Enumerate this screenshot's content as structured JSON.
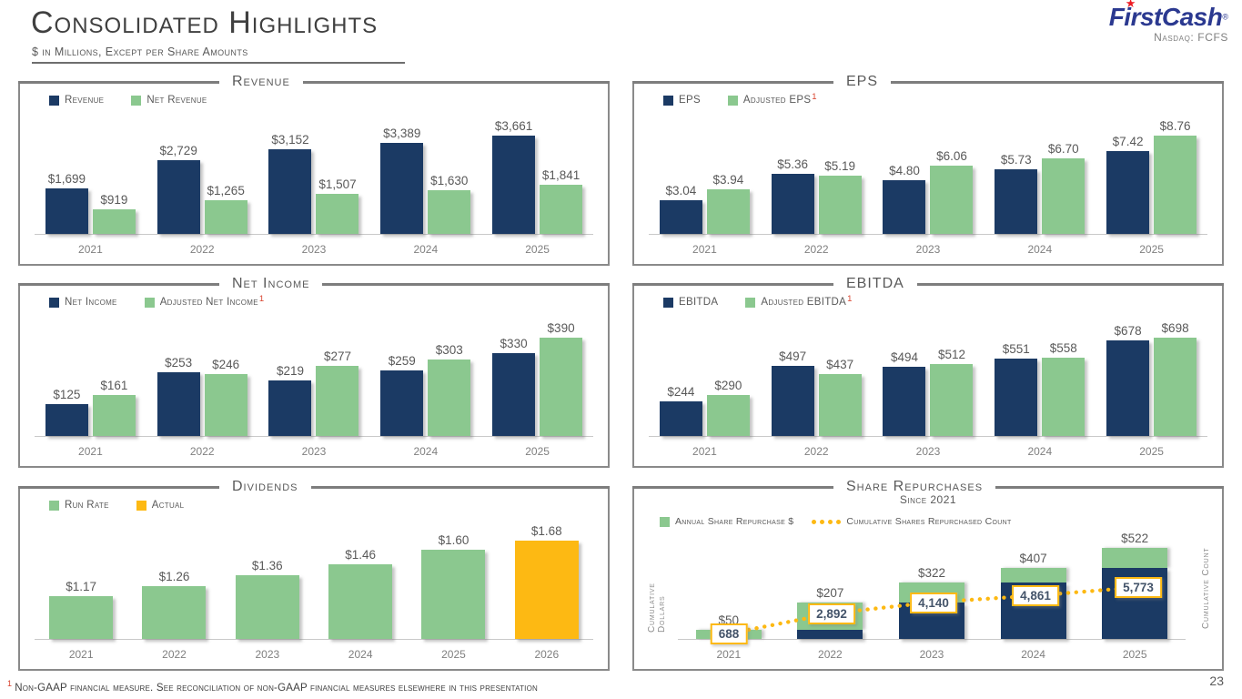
{
  "header": {
    "title": "Consolidated Highlights",
    "subtitle": "$ in Millions, Except per Share Amounts",
    "logo": {
      "brand": "FirstCash",
      "reg": "®",
      "star": "★",
      "exchange": "Nasdaq: FCFS"
    }
  },
  "footnote": {
    "sup": "1",
    "text": "Non-GAAP financial measure. See reconciliation of non-GAAP financial measures elsewhere in this presentation"
  },
  "page_number": "23",
  "colors": {
    "navy": "#1b3a64",
    "green": "#8bc88f",
    "gold": "#fdb913",
    "border_gray": "#8a8a8a",
    "text_gray": "#595959",
    "red": "#d9432e"
  },
  "chart_data": [
    {
      "id": "revenue",
      "type": "grouped",
      "title": "Revenue",
      "categories": [
        "2021",
        "2022",
        "2023",
        "2024",
        "2025"
      ],
      "legend": [
        {
          "label": "Revenue",
          "swatch": "navy"
        },
        {
          "label": "Net Revenue",
          "swatch": "green"
        }
      ],
      "series": [
        {
          "name": "Revenue",
          "color": "navy",
          "values": [
            1699,
            2729,
            3152,
            3389,
            3661
          ],
          "labels": [
            "$1,699",
            "$2,729",
            "$3,152",
            "$3,389",
            "$3,661"
          ]
        },
        {
          "name": "Net Revenue",
          "color": "green",
          "values": [
            919,
            1265,
            1507,
            1630,
            1841
          ],
          "labels": [
            "$919",
            "$1,265",
            "$1,507",
            "$1,630",
            "$1,841"
          ]
        }
      ],
      "ylim": [
        0,
        3661
      ]
    },
    {
      "id": "eps",
      "type": "grouped",
      "title": "EPS",
      "categories": [
        "2021",
        "2022",
        "2023",
        "2024",
        "2025"
      ],
      "legend": [
        {
          "label": "EPS",
          "swatch": "navy"
        },
        {
          "label": "Adjusted EPS",
          "swatch": "green",
          "sup": "1"
        }
      ],
      "series": [
        {
          "name": "EPS",
          "color": "navy",
          "values": [
            3.04,
            5.36,
            4.8,
            5.73,
            7.42
          ],
          "labels": [
            "$3.04",
            "$5.36",
            "$4.80",
            "$5.73",
            "$7.42"
          ]
        },
        {
          "name": "Adjusted EPS",
          "color": "green",
          "values": [
            3.94,
            5.19,
            6.06,
            6.7,
            8.76
          ],
          "labels": [
            "$3.94",
            "$5.19",
            "$6.06",
            "$6.70",
            "$8.76"
          ]
        }
      ],
      "ylim": [
        0,
        8.76
      ]
    },
    {
      "id": "net_income",
      "type": "grouped",
      "title": "Net Income",
      "categories": [
        "2021",
        "2022",
        "2023",
        "2024",
        "2025"
      ],
      "legend": [
        {
          "label": "Net Income",
          "swatch": "navy"
        },
        {
          "label": "Adjusted Net Income",
          "swatch": "green",
          "sup": "1"
        }
      ],
      "series": [
        {
          "name": "Net Income",
          "color": "navy",
          "values": [
            125,
            253,
            219,
            259,
            330
          ],
          "labels": [
            "$125",
            "$253",
            "$219",
            "$259",
            "$330"
          ]
        },
        {
          "name": "Adjusted Net Income",
          "color": "green",
          "values": [
            161,
            246,
            277,
            303,
            390
          ],
          "labels": [
            "$161",
            "$246",
            "$277",
            "$303",
            "$390"
          ]
        }
      ],
      "ylim": [
        0,
        390
      ]
    },
    {
      "id": "ebitda",
      "type": "grouped",
      "title": "EBITDA",
      "categories": [
        "2021",
        "2022",
        "2023",
        "2024",
        "2025"
      ],
      "legend": [
        {
          "label": "EBITDA",
          "swatch": "navy"
        },
        {
          "label": "Adjusted EBITDA",
          "swatch": "green",
          "sup": "1"
        }
      ],
      "series": [
        {
          "name": "EBITDA",
          "color": "navy",
          "values": [
            244,
            497,
            494,
            551,
            678
          ],
          "labels": [
            "$244",
            "$497",
            "$494",
            "$551",
            "$678"
          ]
        },
        {
          "name": "Adjusted EBITDA",
          "color": "green",
          "values": [
            290,
            437,
            512,
            558,
            698
          ],
          "labels": [
            "$290",
            "$437",
            "$512",
            "$558",
            "$698"
          ]
        }
      ],
      "ylim": [
        0,
        698
      ]
    },
    {
      "id": "dividends",
      "type": "single",
      "title": "Dividends",
      "categories": [
        "2021",
        "2022",
        "2023",
        "2024",
        "2025",
        "2026"
      ],
      "legend": [
        {
          "label": "Run Rate",
          "swatch": "green"
        },
        {
          "label": "Actual",
          "swatch": "gold"
        }
      ],
      "values": [
        1.17,
        1.26,
        1.36,
        1.46,
        1.6,
        1.68
      ],
      "labels": [
        "$1.17",
        "$1.26",
        "$1.36",
        "$1.46",
        "$1.60",
        "$1.68"
      ],
      "bar_colors": [
        "green",
        "green",
        "green",
        "green",
        "green",
        "gold"
      ],
      "ylim": [
        0.78,
        1.68
      ]
    },
    {
      "id": "share_repurchases",
      "type": "stacked_line",
      "title": "Share Repurchases",
      "subtitle": "Since 2021",
      "y_left": "Cumulative Dollars",
      "y_right": "Cumulative Count",
      "categories": [
        "2021",
        "2022",
        "2023",
        "2024",
        "2025"
      ],
      "legend": [
        {
          "label": "Annual Share Repurchase $",
          "swatch": "green"
        },
        {
          "label": "Cumulative Shares Repurchased Count",
          "swatch": "dots"
        }
      ],
      "bars": [
        {
          "label": "$50",
          "cumulative_prior": 0,
          "annual": 50,
          "total": 50
        },
        {
          "label": "$207",
          "cumulative_prior": 50,
          "annual": 157,
          "total": 207
        },
        {
          "label": "$322",
          "cumulative_prior": 207,
          "annual": 115,
          "total": 322
        },
        {
          "label": "$407",
          "cumulative_prior": 322,
          "annual": 85,
          "total": 407
        },
        {
          "label": "$522",
          "cumulative_prior": 407,
          "annual": 115,
          "total": 522
        }
      ],
      "line": {
        "values": [
          688,
          2892,
          4140,
          4861,
          5773
        ],
        "labels": [
          "688",
          "2,892",
          "4,140",
          "4,861",
          "5,773"
        ]
      }
    }
  ]
}
